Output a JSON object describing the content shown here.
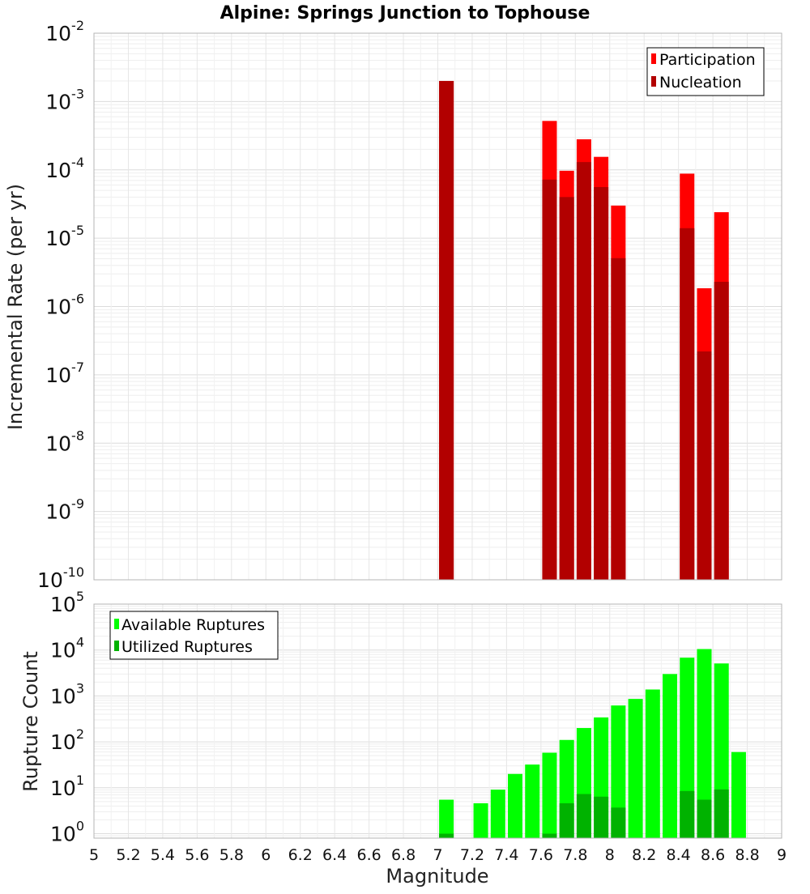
{
  "chart_data": [
    {
      "type": "bar",
      "title": "Alpine: Springs Junction to Tophouse",
      "ylabel": "Incremental Rate (per yr)",
      "xlabel": "",
      "y_scale": "log",
      "ylim": [
        1e-10,
        0.01
      ],
      "xlim": [
        5,
        9
      ],
      "y_ticks": [
        {
          "base": "10",
          "exp": "-10"
        },
        {
          "base": "10",
          "exp": "-9"
        },
        {
          "base": "10",
          "exp": "-8"
        },
        {
          "base": "10",
          "exp": "-7"
        },
        {
          "base": "10",
          "exp": "-6"
        },
        {
          "base": "10",
          "exp": "-5"
        },
        {
          "base": "10",
          "exp": "-4"
        },
        {
          "base": "10",
          "exp": "-3"
        },
        {
          "base": "10",
          "exp": "-2"
        }
      ],
      "grid": true,
      "legend_position": "top-right",
      "series": [
        {
          "name": "Participation",
          "color": "#ff0000",
          "x": [
            7.05,
            7.65,
            7.75,
            7.85,
            7.95,
            8.05,
            8.45,
            8.55,
            8.65
          ],
          "values": [
            0.002,
            0.00052,
            9.7e-05,
            0.00028,
            0.000155,
            3e-05,
            8.8e-05,
            1.85e-06,
            2.4e-05
          ]
        },
        {
          "name": "Nucleation",
          "color": "#b20000",
          "x": [
            7.05,
            7.65,
            7.75,
            7.85,
            7.95,
            8.05,
            8.45,
            8.55,
            8.65
          ],
          "values": [
            0.002,
            7.2e-05,
            4e-05,
            0.00013,
            5.6e-05,
            5.1e-06,
            1.4e-05,
            2.2e-07,
            2.3e-06
          ]
        }
      ]
    },
    {
      "type": "bar",
      "title": "",
      "ylabel": "Rupture Count",
      "xlabel": "Magnitude",
      "y_scale": "log",
      "ylim": [
        0.8,
        100000
      ],
      "xlim": [
        5,
        9
      ],
      "x_ticks": [
        "5",
        "5.2",
        "5.4",
        "5.6",
        "5.8",
        "6",
        "6.2",
        "6.4",
        "6.6",
        "6.8",
        "7",
        "7.2",
        "7.4",
        "7.6",
        "7.8",
        "8",
        "8.2",
        "8.4",
        "8.6",
        "8.8",
        "9"
      ],
      "y_ticks": [
        {
          "base": "10",
          "exp": "0"
        },
        {
          "base": "10",
          "exp": "1"
        },
        {
          "base": "10",
          "exp": "2"
        },
        {
          "base": "10",
          "exp": "3"
        },
        {
          "base": "10",
          "exp": "4"
        },
        {
          "base": "10",
          "exp": "5"
        }
      ],
      "grid": true,
      "legend_position": "top-left",
      "series": [
        {
          "name": "Available Ruptures",
          "color": "#00ff00",
          "x": [
            7.05,
            7.25,
            7.35,
            7.45,
            7.55,
            7.65,
            7.75,
            7.85,
            7.95,
            8.05,
            8.15,
            8.25,
            8.35,
            8.45,
            8.55,
            8.65,
            8.75
          ],
          "values": [
            5.5,
            4.6,
            9.1,
            20,
            32,
            58,
            110,
            200,
            340,
            620,
            860,
            1380,
            3000,
            6800,
            10500,
            5100,
            60
          ]
        },
        {
          "name": "Utilized Ruptures",
          "color": "#00b200",
          "x": [
            7.05,
            7.65,
            7.75,
            7.85,
            7.95,
            8.05,
            8.45,
            8.55,
            8.65
          ],
          "values": [
            1,
            1,
            4.6,
            7.3,
            6.4,
            3.7,
            8.5,
            5.5,
            9.2
          ]
        }
      ]
    }
  ]
}
